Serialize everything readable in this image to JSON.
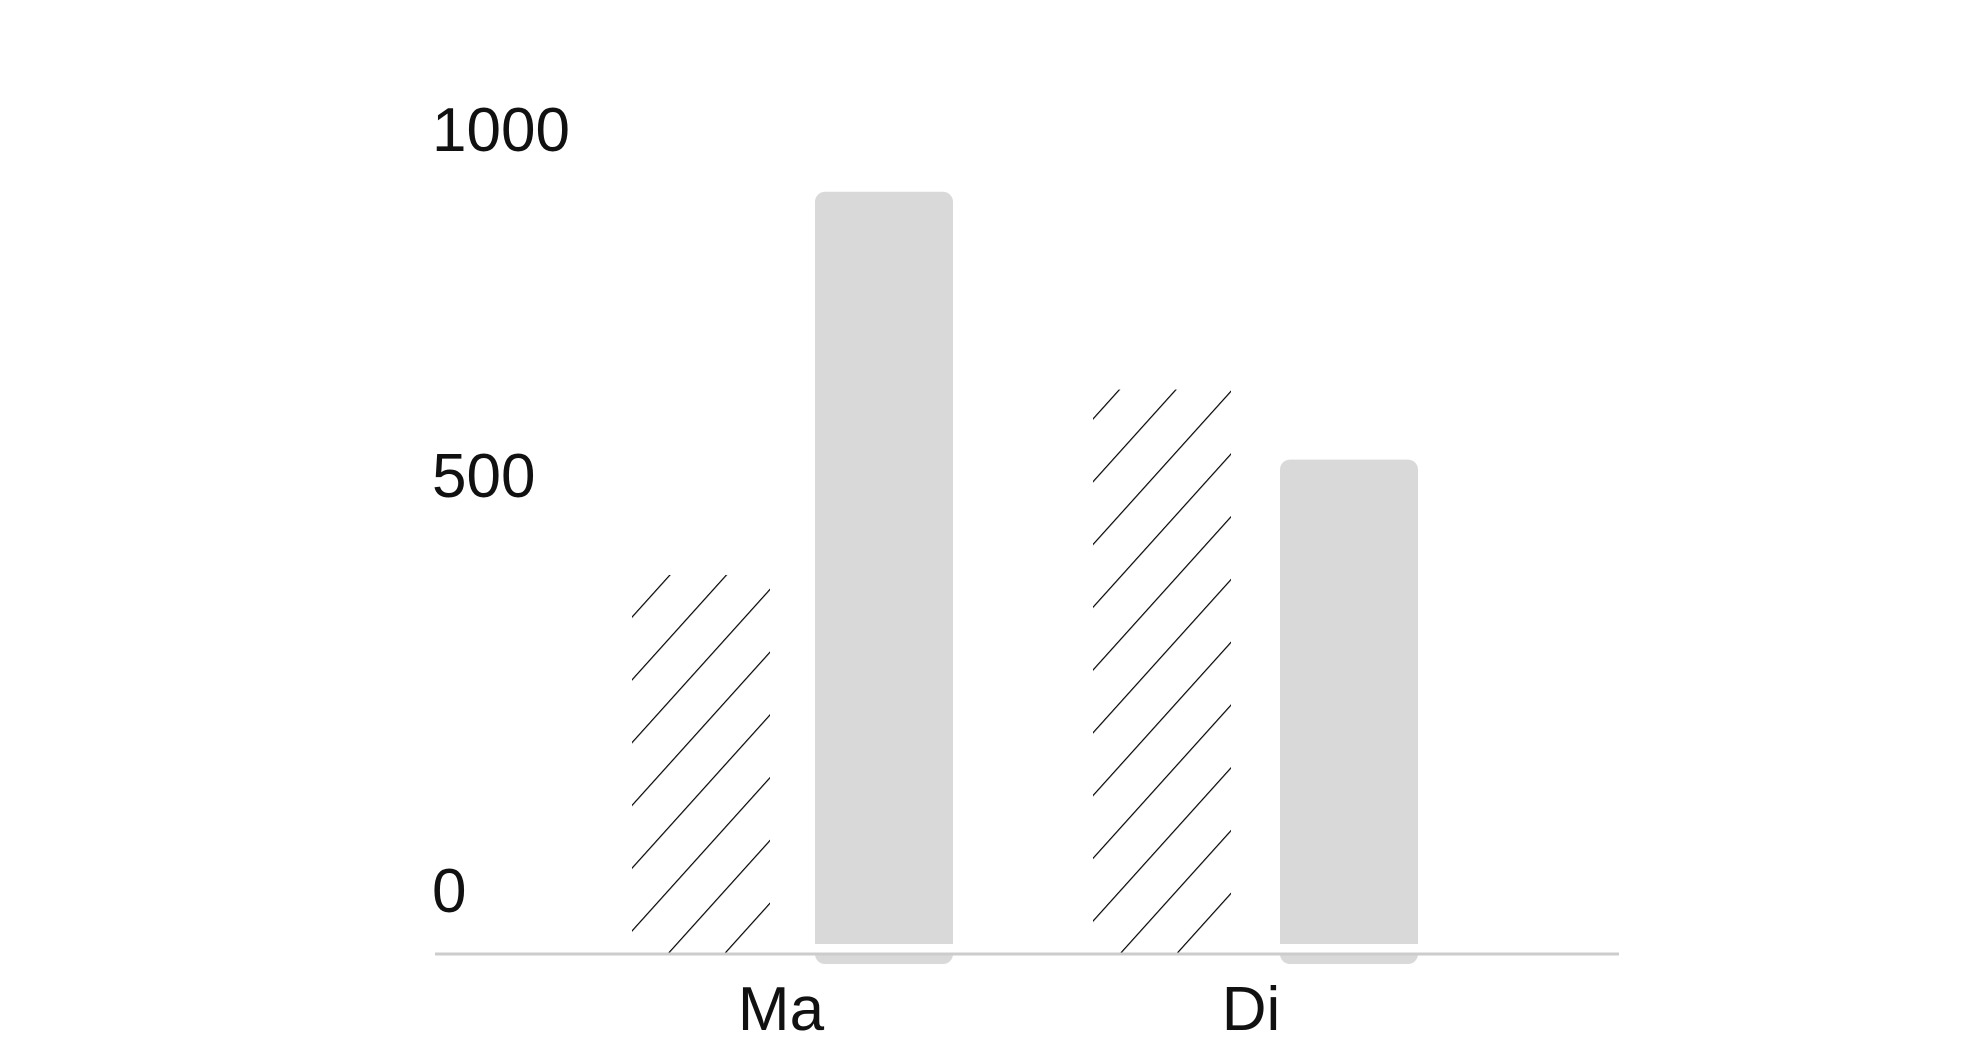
{
  "chart_data": {
    "type": "bar",
    "title": "",
    "xlabel": "",
    "ylabel": "",
    "categories": [
      "Ma",
      "Di"
    ],
    "series": [
      {
        "values": [
          460,
          685
        ],
        "style": "hatched",
        "color": "#000000"
      },
      {
        "values": [
          925,
          600
        ],
        "style": "solid",
        "color": "#d9d9d9"
      }
    ],
    "ylim": [
      0,
      1000
    ],
    "yticks": [
      "0",
      "500",
      "1000"
    ],
    "grid": false,
    "legend": "none",
    "axis_color": "#cccccc"
  }
}
